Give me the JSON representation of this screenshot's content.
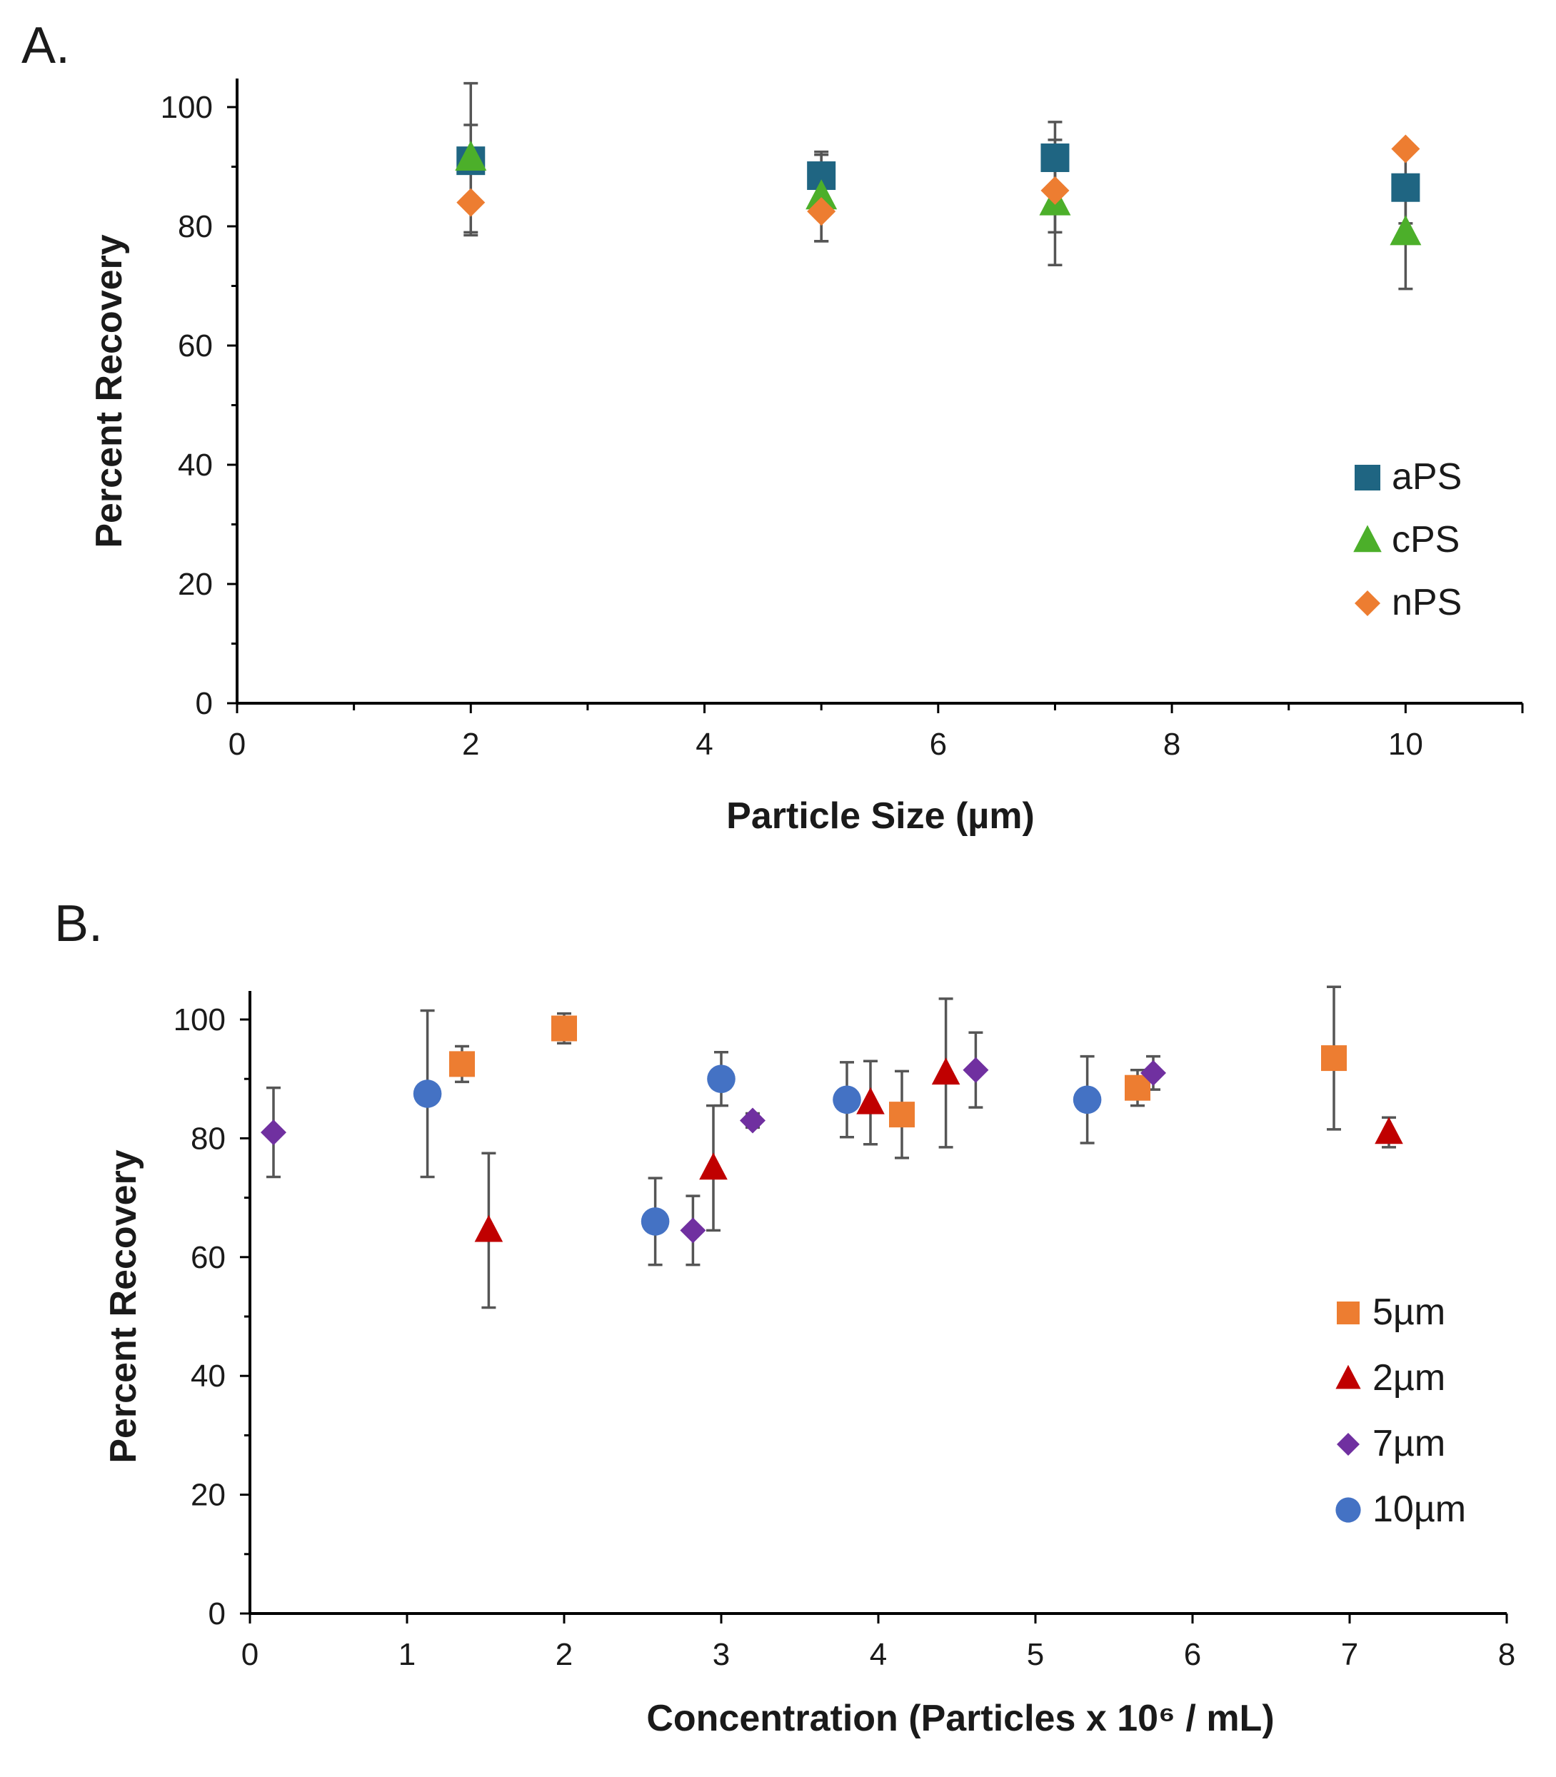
{
  "chart_data": [
    {
      "type": "scatter",
      "panel_label": "A.",
      "xlabel": "Particle Size (µm)",
      "ylabel": "Percent Recovery",
      "xlim": [
        0,
        11
      ],
      "ylim": [
        0,
        100
      ],
      "x_ticks": [
        0,
        2,
        4,
        6,
        8,
        10
      ],
      "y_ticks": [
        0,
        20,
        40,
        60,
        80,
        100
      ],
      "legend_position": "right",
      "series": [
        {
          "name": "aPS",
          "marker": "square",
          "color": "#1f6582",
          "points": [
            {
              "x": 2,
              "y": 91,
              "err": 6
            },
            {
              "x": 5,
              "y": 88.5,
              "err": 3.5
            },
            {
              "x": 7,
              "y": 91.5,
              "err": 6
            },
            {
              "x": 10,
              "y": 86.5,
              "err": 6
            }
          ]
        },
        {
          "name": "cPS",
          "marker": "triangle",
          "color": "#4caf2a",
          "points": [
            {
              "x": 2,
              "y": 91.5,
              "err": 12.5
            },
            {
              "x": 5,
              "y": 85,
              "err": 7.5
            },
            {
              "x": 7,
              "y": 84,
              "err": 10.5
            },
            {
              "x": 10,
              "y": 79,
              "err": 9.5
            }
          ]
        },
        {
          "name": "nPS",
          "marker": "diamond",
          "color": "#ed7d31",
          "points": [
            {
              "x": 2,
              "y": 84,
              "err": 5.5
            },
            {
              "x": 5,
              "y": 82.5,
              "err": 5
            },
            {
              "x": 7,
              "y": 86,
              "err": 7
            },
            {
              "x": 10,
              "y": 93,
              "err": 0
            }
          ]
        }
      ]
    },
    {
      "type": "scatter",
      "panel_label": "B.",
      "xlabel": "Concentration (Particles x 10⁶ / mL)",
      "ylabel": "Percent Recovery",
      "xlim": [
        0,
        8
      ],
      "ylim": [
        0,
        100
      ],
      "x_ticks": [
        0,
        1,
        2,
        3,
        4,
        5,
        6,
        7,
        8
      ],
      "y_ticks": [
        0,
        20,
        40,
        60,
        80,
        100
      ],
      "legend_position": "right",
      "series": [
        {
          "name": "5µm",
          "marker": "square",
          "color": "#ed7d31",
          "points": [
            {
              "x": 1.35,
              "y": 92.5,
              "err": 3
            },
            {
              "x": 2.0,
              "y": 98.5,
              "err": 2.5
            },
            {
              "x": 4.15,
              "y": 84,
              "err": 7.3
            },
            {
              "x": 5.65,
              "y": 88.5,
              "err": 3
            },
            {
              "x": 6.9,
              "y": 93.5,
              "err": 12
            }
          ]
        },
        {
          "name": "2µm",
          "marker": "triangle",
          "color": "#c00000",
          "points": [
            {
              "x": 1.52,
              "y": 64.5,
              "err": 13
            },
            {
              "x": 2.95,
              "y": 75,
              "err": 10.5
            },
            {
              "x": 3.95,
              "y": 86,
              "err": 7
            },
            {
              "x": 4.43,
              "y": 91,
              "err": 12.5
            },
            {
              "x": 7.25,
              "y": 81,
              "err": 2.5
            }
          ]
        },
        {
          "name": "7µm",
          "marker": "diamond",
          "color": "#7030a0",
          "points": [
            {
              "x": 0.15,
              "y": 81,
              "err": 7.5
            },
            {
              "x": 2.82,
              "y": 64.5,
              "err": 5.8
            },
            {
              "x": 3.2,
              "y": 83,
              "err": 1.2
            },
            {
              "x": 4.62,
              "y": 91.5,
              "err": 6.3
            },
            {
              "x": 5.75,
              "y": 91,
              "err": 2.8
            }
          ]
        },
        {
          "name": "10µm",
          "marker": "circle",
          "color": "#4472c4",
          "points": [
            {
              "x": 1.13,
              "y": 87.5,
              "err": 14
            },
            {
              "x": 2.58,
              "y": 66,
              "err": 7.3
            },
            {
              "x": 3.0,
              "y": 90,
              "err": 4.5
            },
            {
              "x": 3.8,
              "y": 86.5,
              "err": 6.3
            },
            {
              "x": 5.33,
              "y": 86.5,
              "err": 7.3
            }
          ]
        }
      ]
    }
  ]
}
